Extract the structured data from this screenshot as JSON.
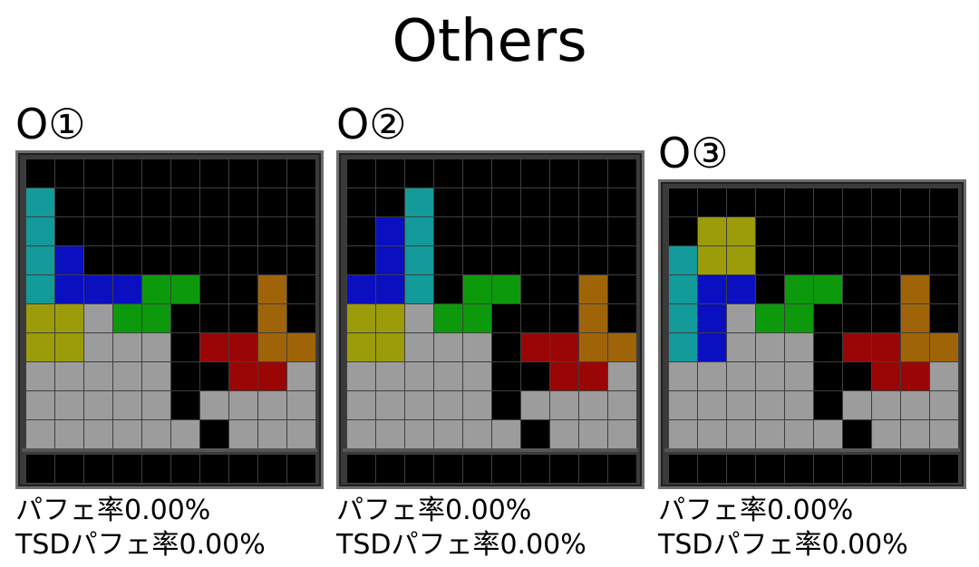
{
  "title": "Others",
  "panels": [
    {
      "name": "O①",
      "pc_label": "パフェ率0.00%",
      "tsd_label": "TSDパフェ率0.00%",
      "rows": [
        "EEEEEEEEEE",
        "IEEEEEEEEE",
        "IEEEEEEEEE",
        "IJEEEEEEEE",
        "IJJJSSEELE",
        "OOGSSEEELE",
        "OOGGGEZZLL",
        "GGGGGEEZZG",
        "GGGGGEGGGG",
        "GGGGGGEGGG"
      ],
      "next": "EEEEEEEEEE"
    },
    {
      "name": "O②",
      "pc_label": "パフェ率0.00%",
      "tsd_label": "TSDパフェ率0.00%",
      "rows": [
        "EEEEEEEEEE",
        "EEIEEEEEEE",
        "EJIEEEEEEE",
        "EJIEEEEEEE",
        "JJIESSEELE",
        "OOGSSEEELE",
        "OOGGGEZZLL",
        "GGGGGEEZZG",
        "GGGGGEGGGG",
        "GGGGGGEGGG"
      ],
      "next": "EEEEEEEEEE"
    },
    {
      "name": "O③",
      "pc_label": "パフェ率0.00%",
      "tsd_label": "TSDパフェ率0.00%",
      "rows": [
        "EEEEEEEEEE",
        "EOOEEEEEEE",
        "IOOEEEEEEE",
        "IJJESSEELE",
        "IJGSSEEELE",
        "IJGGGEZZLL",
        "GGGGGEEZZG",
        "GGGGGEGGGG",
        "GGGGGGEGGG"
      ],
      "next": "EEEEEEEEEE"
    }
  ],
  "colors": {
    "I": "#139a9a",
    "J": "#0a0fbf",
    "O": "#9c9c0a",
    "S": "#0c9a0c",
    "Z": "#9a0606",
    "L": "#a06408",
    "garbage": "#9c9c9c",
    "empty": "#000000"
  }
}
